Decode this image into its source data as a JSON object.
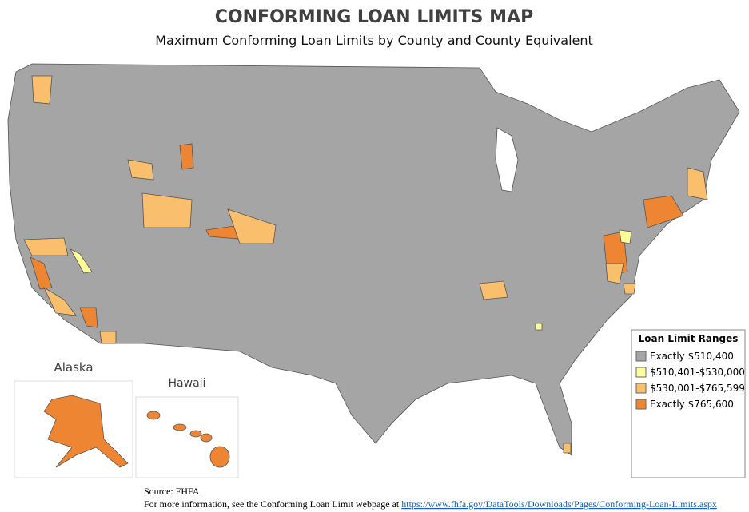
{
  "header": {
    "title": "CONFORMING LOAN LIMITS MAP",
    "subtitle": "Maximum Conforming Loan Limits by County and County Equivalent"
  },
  "insets": {
    "alaska": "Alaska",
    "hawaii": "Hawaii"
  },
  "legend": {
    "title": "Loan Limit Ranges",
    "items": [
      {
        "label": "Exactly $510,400",
        "color": "#a5a5a5"
      },
      {
        "label": "$510,401-$530,000",
        "color": "#ffff99"
      },
      {
        "label": "$530,001-$765,599",
        "color": "#f9bf6c"
      },
      {
        "label": "Exactly $765,600",
        "color": "#ee8532"
      }
    ]
  },
  "footer": {
    "source": "Source: FHFA",
    "more_info": "For more information, see the Conforming Loan Limit webpage at",
    "link": "https://www.fhfa.gov/DataTools/Downloads/Pages/Conforming-Loan-Limits.aspx"
  }
}
